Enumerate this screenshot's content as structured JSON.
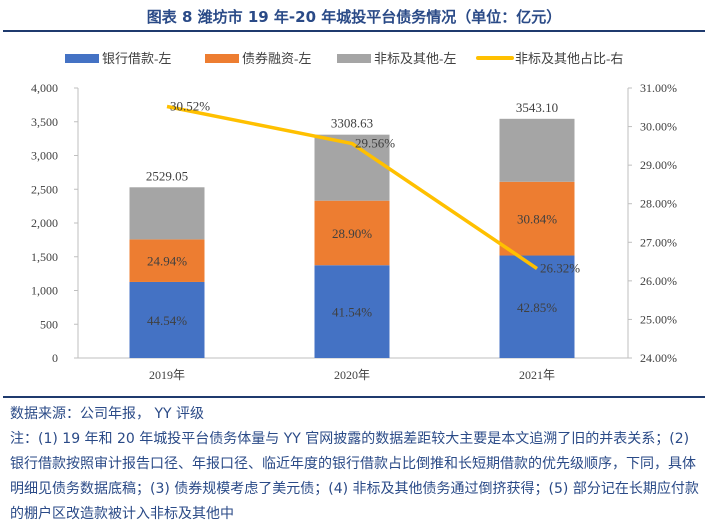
{
  "title": "图表 8 潍坊市 19 年-20 年城投平台债务情况（单位：亿元）",
  "chart_data": {
    "type": "bar",
    "stacked": true,
    "categories": [
      "2019年",
      "2020年",
      "2021年"
    ],
    "series": [
      {
        "name": "银行借款-左",
        "color": "#4472c4",
        "values": [
          1126.5,
          1374.4,
          1518.2
        ],
        "labels": [
          "44.54%",
          "41.54%",
          "42.85%"
        ]
      },
      {
        "name": "债券融资-左",
        "color": "#ed7d31",
        "values": [
          630.7,
          956.2,
          1092.7
        ],
        "labels": [
          "24.94%",
          "28.90%",
          "30.84%"
        ]
      },
      {
        "name": "非标及其他-左",
        "color": "#a5a5a5",
        "values": [
          771.9,
          978.0,
          932.5
        ],
        "labels": [
          "",
          "",
          ""
        ]
      }
    ],
    "line": {
      "name": "非标及其他占比-右",
      "color": "#ffc000",
      "values": [
        30.52,
        29.56,
        26.32
      ],
      "labels": [
        "30.52%",
        "29.56%",
        "26.32%"
      ]
    },
    "totals": [
      "2529.05",
      "3308.63",
      "3543.10"
    ],
    "left_axis": {
      "min": 0,
      "max": 4000,
      "ticks": [
        "0",
        "500",
        "1,000",
        "1,500",
        "2,000",
        "2,500",
        "3,000",
        "3,500",
        "4,000"
      ]
    },
    "right_axis": {
      "min": 24,
      "max": 31,
      "ticks": [
        "24.00%",
        "25.00%",
        "26.00%",
        "27.00%",
        "28.00%",
        "29.00%",
        "30.00%",
        "31.00%"
      ]
    },
    "grid": false,
    "legend": "top"
  },
  "notes": [
    "数据来源：公司年报， YY 评级",
    "注：(1) 19 年和 20 年城投平台债务体量与 YY 官网披露的数据差距较大主要是本文追溯了旧的并表关系；(2) 银行借款按照审计报告口径、年报口径、临近年度的银行借款占比倒推和长短期借款的优先级顺序，下同，具体明细见债务数据底稿；(3) 债券规模考虑了美元债；(4) 非标及其他债务通过倒挤获得；(5) 部分记在长期应付款的棚户区改造款被计入非标及其他中"
  ]
}
